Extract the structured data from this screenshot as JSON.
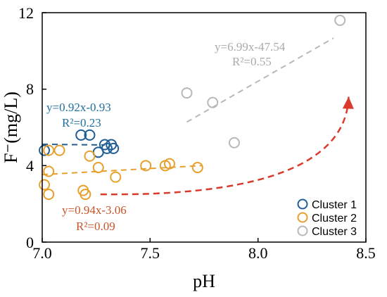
{
  "chart_data": {
    "type": "scatter",
    "xlabel": "pH",
    "ylabel": "F⁻(mg/L)",
    "xlim": [
      7.0,
      8.5
    ],
    "ylim": [
      0,
      12
    ],
    "xticks": [
      "7.0",
      "7.5",
      "8.0",
      "8.5"
    ],
    "yticks": [
      "0",
      "4",
      "8",
      "12"
    ],
    "grid": false,
    "legend_position": "bottom-right",
    "series": [
      {
        "name": "Cluster 1",
        "color": "#1f5f95",
        "points": [
          [
            7.01,
            4.8
          ],
          [
            7.18,
            5.6
          ],
          [
            7.22,
            5.6
          ],
          [
            7.26,
            4.7
          ],
          [
            7.29,
            5.1
          ],
          [
            7.3,
            4.9
          ],
          [
            7.32,
            5.1
          ],
          [
            7.33,
            4.9
          ]
        ],
        "fit_x": [
          7.0,
          7.29
        ],
        "equation": "y=0.92x-0.93",
        "r2": "R²=0.23"
      },
      {
        "name": "Cluster 2",
        "color": "#e8a02c",
        "points": [
          [
            7.03,
            4.8
          ],
          [
            7.08,
            4.8
          ],
          [
            7.03,
            3.7
          ],
          [
            7.01,
            3.0
          ],
          [
            7.03,
            2.5
          ],
          [
            7.19,
            2.7
          ],
          [
            7.2,
            2.5
          ],
          [
            7.22,
            4.5
          ],
          [
            7.26,
            3.9
          ],
          [
            7.34,
            3.4
          ],
          [
            7.48,
            4.0
          ],
          [
            7.57,
            4.0
          ],
          [
            7.59,
            4.1
          ],
          [
            7.72,
            3.9
          ]
        ],
        "fit_x": [
          7.0,
          7.74
        ],
        "equation": "y=0.94x-3.06",
        "r2": "R²=0.09"
      },
      {
        "name": "Cluster 3",
        "color": "#b8b8b8",
        "points": [
          [
            7.67,
            7.8
          ],
          [
            7.79,
            7.3
          ],
          [
            7.89,
            5.2
          ],
          [
            8.38,
            11.6
          ]
        ],
        "fit_x": [
          7.67,
          8.35
        ],
        "equation": "y=6.99x-47.54",
        "r2": "R²=0.55"
      }
    ],
    "trend_arrow": {
      "color": "#d93a2b",
      "from": [
        7.27,
        2.5
      ],
      "to": [
        8.42,
        7.6
      ]
    }
  }
}
